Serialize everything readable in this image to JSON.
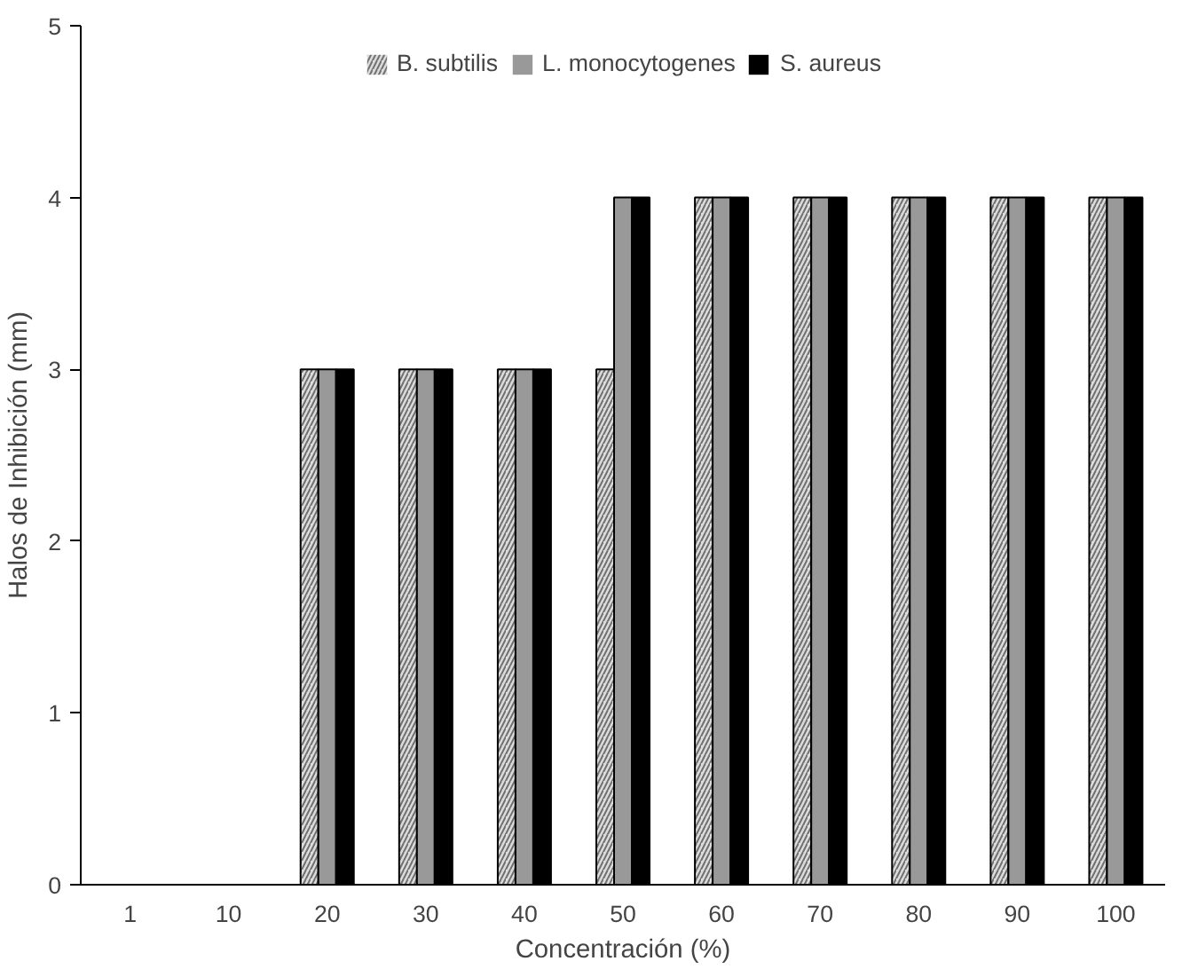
{
  "chart_data": {
    "type": "bar",
    "xlabel": "Concentración (%)",
    "ylabel": "Halos de Inhibición (mm)",
    "categories": [
      "1",
      "10",
      "20",
      "30",
      "40",
      "50",
      "60",
      "70",
      "80",
      "90",
      "100"
    ],
    "series": [
      {
        "name": "B. subtilis",
        "color": "#dcdcdc",
        "values": [
          0,
          0,
          3,
          3,
          3,
          3,
          4,
          4,
          4,
          4,
          4
        ]
      },
      {
        "name": "L. monocytogenes",
        "color": "#999999",
        "values": [
          0,
          0,
          3,
          3,
          3,
          4,
          4,
          4,
          4,
          4,
          4
        ]
      },
      {
        "name": "S. aureus",
        "color": "#000000",
        "values": [
          0,
          0,
          3,
          3,
          3,
          4,
          4,
          4,
          4,
          4,
          4
        ]
      }
    ],
    "ylim": [
      0,
      5
    ],
    "yticks": [
      0,
      1,
      2,
      3,
      4,
      5
    ],
    "grid": false,
    "legend": "top"
  }
}
